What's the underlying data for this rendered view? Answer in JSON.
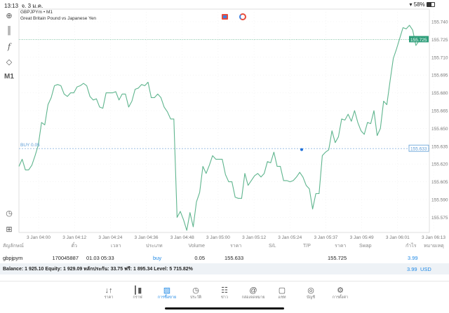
{
  "status_bar": {
    "time": "13:13",
    "date": "จ. 3 ม.ค.",
    "battery": "58%"
  },
  "chart": {
    "symbol_line": "GBPJPYm • M1",
    "description": "Great Britain Pound vs Japanese Yen",
    "line_color": "#5fb58e",
    "current_price_label": "155.725",
    "buy_line_label": "BUY 0.05",
    "buy_price_label": "155.633",
    "timeframe": "M1"
  },
  "chart_data": {
    "type": "line",
    "y_ticks": [
      "155.740",
      "155.725",
      "155.710",
      "155.695",
      "155.680",
      "155.665",
      "155.650",
      "155.635",
      "155.620",
      "155.605",
      "155.590",
      "155.575"
    ],
    "ylim": [
      155.56,
      155.75
    ],
    "x_ticks": [
      "3 Jan 04:00",
      "3 Jan 04:12",
      "3 Jan 04:24",
      "3 Jan 04:36",
      "3 Jan 04:48",
      "3 Jan 05:00",
      "3 Jan 05:12",
      "3 Jan 05:24",
      "3 Jan 05:37",
      "3 Jan 05:49",
      "3 Jan 06:01",
      "3 Jan 06:13"
    ],
    "grid": true,
    "current_price": 155.725,
    "buy_price": 155.633,
    "values": [
      155.618,
      155.624,
      155.615,
      155.615,
      155.619,
      155.627,
      155.636,
      155.655,
      155.653,
      155.67,
      155.676,
      155.686,
      155.687,
      155.686,
      155.679,
      155.677,
      155.68,
      155.68,
      155.685,
      155.686,
      155.688,
      155.686,
      155.677,
      155.674,
      155.675,
      155.668,
      155.667,
      155.68,
      155.68,
      155.68,
      155.681,
      155.674,
      155.679,
      155.679,
      155.668,
      155.673,
      155.683,
      155.684,
      155.687,
      155.686,
      155.689,
      155.676,
      155.676,
      155.679,
      155.676,
      155.668,
      155.664,
      155.658,
      155.658,
      155.575,
      155.58,
      155.573,
      155.564,
      155.579,
      155.567,
      155.588,
      155.596,
      155.618,
      155.612,
      155.619,
      155.627,
      155.624,
      155.624,
      155.624,
      155.611,
      155.605,
      155.605,
      155.592,
      155.591,
      155.591,
      155.612,
      155.602,
      155.606,
      155.61,
      155.612,
      155.609,
      155.612,
      155.622,
      155.621,
      155.63,
      155.618,
      155.618,
      155.606,
      155.606,
      155.605,
      155.606,
      155.609,
      155.613,
      155.609,
      155.602,
      155.599,
      155.582,
      155.595,
      155.595,
      155.627,
      155.63,
      155.632,
      155.648,
      155.638,
      155.643,
      155.658,
      155.657,
      155.662,
      155.656,
      155.665,
      155.655,
      155.648,
      155.645,
      155.655,
      155.654,
      155.665,
      155.644,
      155.65,
      155.673,
      155.67,
      155.69,
      155.709,
      155.717,
      155.726,
      155.735,
      155.734,
      155.737,
      155.733,
      155.72,
      155.724,
      155.725
    ]
  },
  "toolbar": {
    "timeframe": "M1"
  },
  "positions": {
    "headers": [
      "สัญลักษณ์",
      "ตั๋ว",
      "เวลา",
      "ประเภท",
      "Volume",
      "ราคา",
      "S/L",
      "T/P",
      "ราคา",
      "Swap",
      "กำไร",
      "หมายเหตุ"
    ],
    "rows": [
      {
        "symbol": "gbpjpym",
        "ticket": "170045887",
        "time": "01.03 05:33",
        "type": "buy",
        "volume": "0.05",
        "open_price": "155.633",
        "sl": "",
        "tp": "",
        "price": "155.725",
        "swap": "",
        "profit": "3.99",
        "comment": ""
      }
    ],
    "summary": "Balance: 1 925.10 Equity: 1 929.09 หลักประกัน: 33.75 ฟรี: 1 895.34 Level: 5 715.82%",
    "total_profit": "3.99",
    "currency": "USD"
  },
  "nav": [
    {
      "label": "ราคา",
      "icon": "arrows-updown-icon"
    },
    {
      "label": "กราฟ",
      "icon": "candles-icon"
    },
    {
      "label": "การซื้อขาย",
      "icon": "trade-chart-icon",
      "active": true
    },
    {
      "label": "ประวัติ",
      "icon": "history-icon"
    },
    {
      "label": "ข่าว",
      "icon": "news-icon"
    },
    {
      "label": "กล่องจดหมาย",
      "icon": "mail-at-icon"
    },
    {
      "label": "แชท",
      "icon": "chat-icon"
    },
    {
      "label": "บัญชี",
      "icon": "account-icon"
    },
    {
      "label": "การตั้งค่า",
      "icon": "settings-icon"
    }
  ],
  "colors": {
    "accent": "#1e88e5",
    "line": "#5fb58e",
    "profit": "#1e88e5",
    "balance_bg": "#eef2f6"
  }
}
